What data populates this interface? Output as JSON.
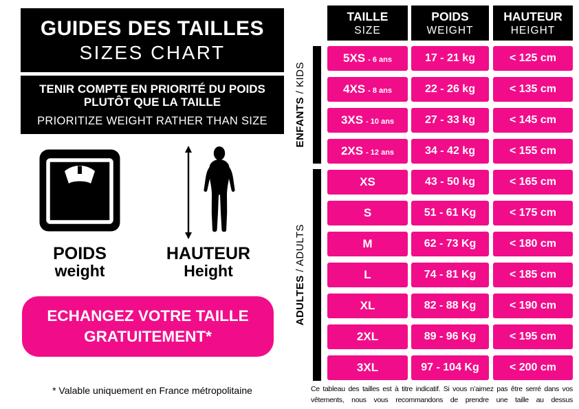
{
  "colors": {
    "pink": "#F10D8A",
    "black": "#000000",
    "white": "#FFFFFF"
  },
  "left_panel": {
    "title_fr": "GUIDES DES TAILLES",
    "title_en": "SIZES CHART",
    "notice_fr_line1": "TENIR COMPTE EN PRIORITÉ DU POIDS",
    "notice_fr_line2": "PLUTÔT QUE LA TAILLE",
    "notice_en": "PRIORITIZE WEIGHT RATHER THAN SIZE",
    "weight_label_fr": "POIDS",
    "weight_label_en": "weight",
    "height_label_fr": "HAUTEUR",
    "height_label_en": "Height",
    "exchange_line1": "ECHANGEZ VOTRE TAILLE",
    "exchange_line2": "GRATUITEMENT*",
    "footnote": "* Valable uniquement en France métropolitaine"
  },
  "table": {
    "headers": [
      {
        "fr": "TAILLE",
        "en": "SIZE"
      },
      {
        "fr": "POIDS",
        "en": "WEIGHT"
      },
      {
        "fr": "HAUTEUR",
        "en": "HEIGHT"
      }
    ],
    "groups": [
      {
        "fr": "ENFANTS",
        "en": " / KIDS"
      },
      {
        "fr": "ADULTES",
        "en": " / ADULTS"
      }
    ],
    "rows": [
      {
        "size": "5XS",
        "age": "- 6 ans",
        "weight": "17 - 21 kg",
        "height": "< 125 cm",
        "group": "kids"
      },
      {
        "size": "4XS",
        "age": "- 8 ans",
        "weight": "22 - 26 kg",
        "height": "< 135 cm",
        "group": "kids"
      },
      {
        "size": "3XS",
        "age": "- 10 ans",
        "weight": "27 - 33 kg",
        "height": "< 145 cm",
        "group": "kids"
      },
      {
        "size": "2XS",
        "age": "- 12 ans",
        "weight": "34 - 42 kg",
        "height": "< 155 cm",
        "group": "kids"
      },
      {
        "size": "XS",
        "age": "",
        "weight": "43 - 50 kg",
        "height": "< 165 cm",
        "group": "adults"
      },
      {
        "size": "S",
        "age": "",
        "weight": "51 - 61 Kg",
        "height": "< 175 cm",
        "group": "adults"
      },
      {
        "size": "M",
        "age": "",
        "weight": "62 - 73 Kg",
        "height": "< 180 cm",
        "group": "adults"
      },
      {
        "size": "L",
        "age": "",
        "weight": "74 - 81 Kg",
        "height": "< 185 cm",
        "group": "adults"
      },
      {
        "size": "XL",
        "age": "",
        "weight": "82 - 88 Kg",
        "height": "< 190 cm",
        "group": "adults"
      },
      {
        "size": "2XL",
        "age": "",
        "weight": "89 - 96 Kg",
        "height": "< 195 cm",
        "group": "adults"
      },
      {
        "size": "3XL",
        "age": "",
        "weight": "97 - 104 Kg",
        "height": "< 200 cm",
        "group": "adults"
      }
    ]
  },
  "disclaimer": "Ce tableau des tailles est à titre indicatif. Si vous n’aimez pas être serré dans vos vêtements, nous vous recommandons de prendre une taille au dessus"
}
